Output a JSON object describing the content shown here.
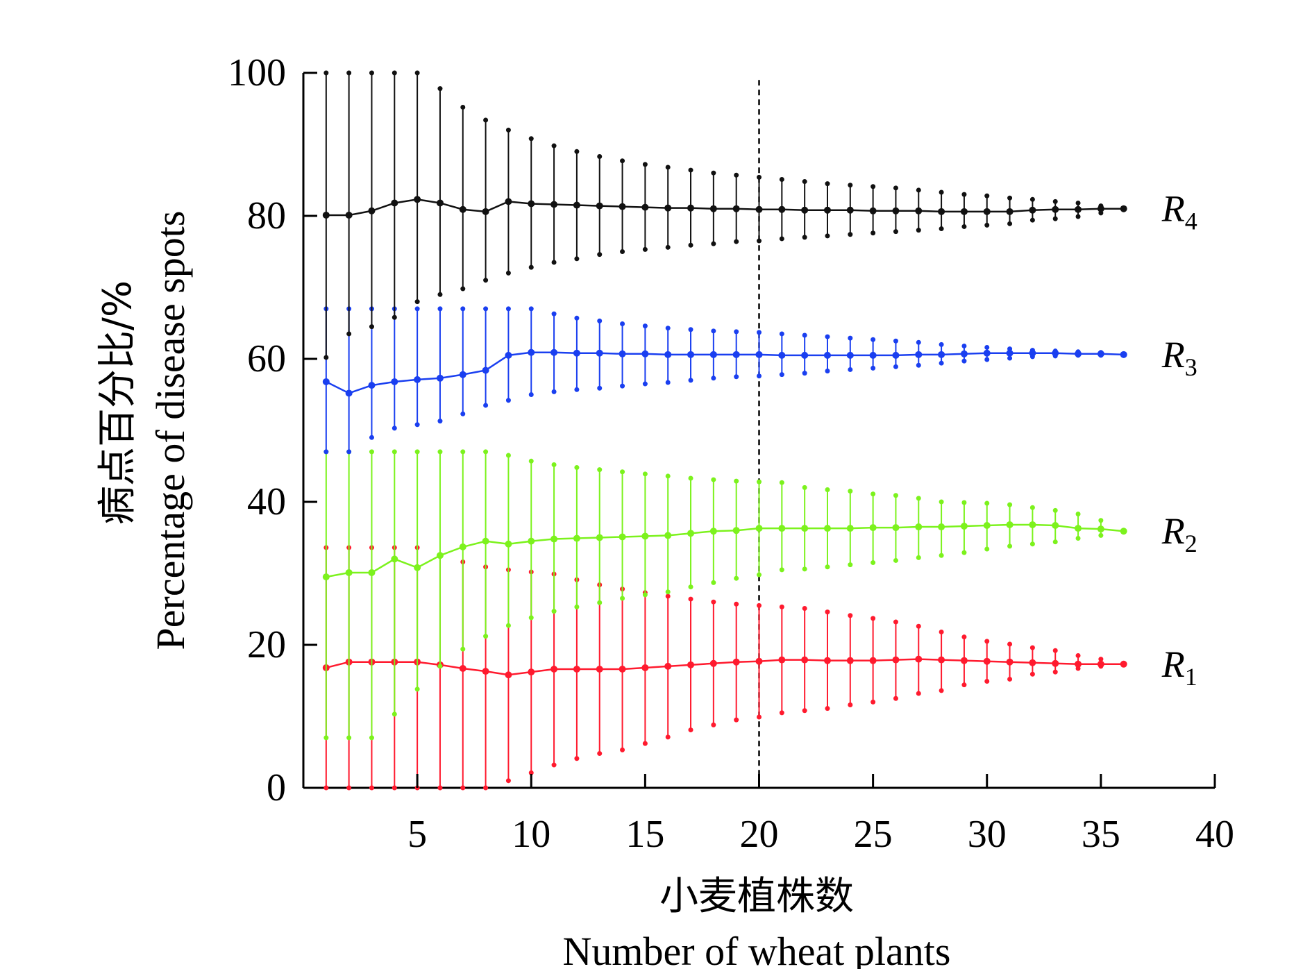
{
  "chart_data": {
    "type": "line",
    "title": "",
    "xlabel_zh": "小麦植株数",
    "xlabel_en": "Number of wheat plants",
    "ylabel_zh": "病点百分比/%",
    "ylabel_en": "Percentage of disease spots",
    "xlim": [
      0,
      40
    ],
    "ylim": [
      0,
      100
    ],
    "x_ticks": [
      5,
      10,
      15,
      20,
      25,
      30,
      35,
      40
    ],
    "y_ticks": [
      0,
      20,
      40,
      60,
      80,
      100
    ],
    "reference_line_x": 20,
    "x": [
      1,
      2,
      3,
      4,
      5,
      6,
      7,
      8,
      9,
      10,
      11,
      12,
      13,
      14,
      15,
      16,
      17,
      18,
      19,
      20,
      21,
      22,
      23,
      24,
      25,
      26,
      27,
      28,
      29,
      30,
      31,
      32,
      33,
      34,
      35,
      36
    ],
    "series": [
      {
        "name": "R",
        "subscript": "1",
        "color": "#ff1a2e",
        "mean": [
          16.8,
          17.6,
          17.6,
          17.6,
          17.6,
          17.2,
          16.7,
          16.3,
          15.8,
          16.2,
          16.6,
          16.6,
          16.6,
          16.6,
          16.8,
          17.0,
          17.2,
          17.4,
          17.6,
          17.7,
          17.9,
          17.9,
          17.8,
          17.8,
          17.8,
          17.9,
          18.0,
          17.9,
          17.8,
          17.7,
          17.6,
          17.5,
          17.4,
          17.3,
          17.3,
          17.3
        ],
        "upper": [
          33.6,
          33.6,
          33.6,
          33.6,
          33.6,
          32.5,
          31.6,
          30.9,
          30.5,
          30.2,
          29.9,
          29.1,
          28.4,
          27.8,
          27.3,
          26.8,
          26.4,
          26.0,
          25.7,
          25.5,
          25.3,
          25.1,
          24.6,
          24.1,
          23.7,
          23.2,
          22.6,
          21.8,
          21.1,
          20.5,
          20.1,
          19.6,
          19.2,
          18.5,
          18.0,
          17.3
        ],
        "lower": [
          0,
          0,
          0,
          0,
          0,
          0,
          0,
          0,
          1.0,
          2.1,
          3.2,
          4.1,
          4.8,
          5.3,
          6.2,
          7.1,
          8.1,
          8.8,
          9.5,
          9.9,
          10.5,
          10.8,
          11.1,
          11.6,
          12.0,
          12.5,
          13.2,
          13.6,
          14.4,
          14.9,
          15.2,
          15.9,
          16.2,
          16.7,
          17.0,
          17.3
        ]
      },
      {
        "name": "R",
        "subscript": "2",
        "color": "#7cf21d",
        "mean": [
          29.5,
          30.1,
          30.1,
          32.0,
          30.8,
          32.5,
          33.7,
          34.5,
          34.1,
          34.5,
          34.8,
          34.9,
          35.0,
          35.1,
          35.2,
          35.3,
          35.6,
          35.9,
          36.0,
          36.3,
          36.3,
          36.3,
          36.3,
          36.3,
          36.4,
          36.4,
          36.5,
          36.5,
          36.6,
          36.7,
          36.8,
          36.8,
          36.7,
          36.3,
          36.2,
          35.9
        ],
        "upper": [
          47.0,
          47.0,
          47.0,
          47.0,
          47.0,
          47.0,
          47.0,
          47.0,
          46.5,
          45.7,
          45.2,
          44.8,
          44.5,
          44.2,
          43.9,
          43.6,
          43.3,
          43.1,
          42.9,
          42.8,
          42.7,
          42.0,
          41.7,
          41.5,
          41.1,
          40.9,
          40.5,
          40.0,
          39.9,
          39.8,
          39.6,
          39.2,
          38.8,
          38.3,
          37.4,
          35.9
        ],
        "lower": [
          7.0,
          7.0,
          7.0,
          10.3,
          13.8,
          17.0,
          19.4,
          21.2,
          22.7,
          23.8,
          24.7,
          25.3,
          25.9,
          26.5,
          27.0,
          27.4,
          28.1,
          28.7,
          29.3,
          29.8,
          30.5,
          30.6,
          30.9,
          31.2,
          31.5,
          31.8,
          32.2,
          32.5,
          32.9,
          33.4,
          33.8,
          34.1,
          34.4,
          34.9,
          35.3,
          35.9
        ]
      },
      {
        "name": "R",
        "subscript": "3",
        "color": "#1a3ff0",
        "mean": [
          56.8,
          55.2,
          56.3,
          56.8,
          57.1,
          57.3,
          57.8,
          58.4,
          60.5,
          60.9,
          60.9,
          60.8,
          60.8,
          60.7,
          60.7,
          60.6,
          60.6,
          60.6,
          60.6,
          60.6,
          60.5,
          60.5,
          60.5,
          60.5,
          60.5,
          60.5,
          60.6,
          60.6,
          60.7,
          60.8,
          60.8,
          60.8,
          60.8,
          60.7,
          60.7,
          60.6
        ],
        "upper": [
          67.0,
          67.0,
          67.0,
          67.0,
          67.0,
          67.0,
          67.0,
          67.0,
          67.0,
          67.0,
          66.3,
          65.7,
          65.3,
          64.9,
          64.6,
          64.3,
          64.1,
          63.9,
          63.8,
          63.7,
          63.5,
          63.3,
          63.1,
          62.9,
          62.7,
          62.5,
          62.3,
          62.0,
          61.8,
          61.6,
          61.4,
          61.2,
          61.1,
          61.0,
          60.9,
          60.6
        ],
        "lower": [
          47.0,
          47.0,
          49.0,
          50.3,
          50.8,
          51.3,
          52.3,
          53.5,
          54.2,
          55.0,
          55.4,
          55.7,
          55.9,
          56.2,
          56.5,
          56.7,
          57.0,
          57.3,
          57.5,
          57.6,
          57.8,
          58.0,
          58.3,
          58.5,
          58.7,
          58.9,
          59.1,
          59.4,
          59.7,
          59.9,
          60.1,
          60.3,
          60.4,
          60.5,
          60.5,
          60.6
        ]
      },
      {
        "name": "R",
        "subscript": "4",
        "color": "#111111",
        "mean": [
          80.1,
          80.1,
          80.7,
          81.8,
          82.3,
          81.8,
          80.9,
          80.6,
          82.0,
          81.7,
          81.6,
          81.5,
          81.4,
          81.3,
          81.2,
          81.1,
          81.1,
          81.0,
          81.0,
          80.9,
          80.9,
          80.8,
          80.8,
          80.8,
          80.7,
          80.7,
          80.7,
          80.6,
          80.6,
          80.6,
          80.6,
          80.8,
          80.9,
          80.9,
          81.0,
          81.0
        ],
        "upper": [
          100,
          100,
          100,
          100,
          100,
          97.8,
          95.2,
          93.4,
          92.0,
          90.8,
          89.8,
          89.0,
          88.3,
          87.7,
          87.2,
          86.8,
          86.4,
          86.0,
          85.7,
          85.4,
          85.1,
          84.8,
          84.5,
          84.3,
          84.1,
          83.9,
          83.6,
          83.3,
          83.0,
          82.8,
          82.5,
          82.3,
          82.0,
          81.8,
          81.4,
          81.0
        ],
        "lower": [
          60.2,
          63.5,
          64.5,
          65.8,
          68.0,
          69.0,
          69.8,
          71.0,
          72.0,
          72.8,
          73.5,
          74.0,
          74.6,
          75.0,
          75.3,
          75.6,
          75.9,
          76.1,
          76.4,
          76.5,
          76.8,
          77.0,
          77.2,
          77.4,
          77.6,
          77.8,
          78.0,
          78.2,
          78.5,
          78.7,
          78.9,
          79.4,
          79.6,
          79.9,
          80.4,
          81.0
        ]
      }
    ]
  }
}
